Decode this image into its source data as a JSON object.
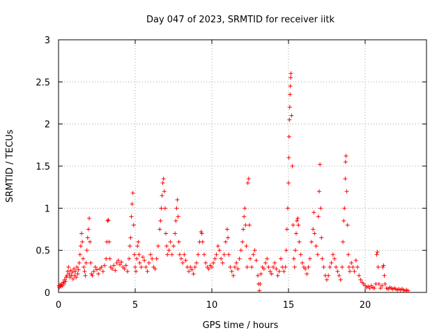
{
  "chart_data": {
    "type": "scatter",
    "title": "Day 047 of 2023, SRMTID for receiver iitk",
    "xlabel": "GPS time / hours",
    "ylabel": "SRMTID / TECUs",
    "xlim": [
      0,
      24
    ],
    "ylim": [
      0,
      3
    ],
    "grid": true,
    "marker": "+",
    "color": "#ff0000",
    "xticks": [
      0,
      5,
      10,
      15,
      20
    ],
    "xtick_labels": [
      "0",
      "5",
      "10",
      "15",
      "20"
    ],
    "yticks": [
      0,
      0.5,
      1,
      1.5,
      2,
      2.5,
      3
    ],
    "ytick_labels": [
      "0",
      "0.5",
      "1",
      "1.5",
      "2",
      "2.5",
      "3"
    ],
    "series": [
      {
        "name": "SRMTID",
        "points": [
          [
            0.02,
            0.08
          ],
          [
            0.05,
            0.06
          ],
          [
            0.1,
            0.09
          ],
          [
            0.15,
            0.07
          ],
          [
            0.2,
            0.1
          ],
          [
            0.25,
            0.08
          ],
          [
            0.3,
            0.12
          ],
          [
            0.35,
            0.1
          ],
          [
            0.4,
            0.15
          ],
          [
            0.45,
            0.13
          ],
          [
            0.5,
            0.18
          ],
          [
            0.55,
            0.2
          ],
          [
            0.6,
            0.25
          ],
          [
            0.65,
            0.3
          ],
          [
            0.7,
            0.22
          ],
          [
            0.75,
            0.18
          ],
          [
            0.8,
            0.26
          ],
          [
            0.85,
            0.2
          ],
          [
            0.9,
            0.24
          ],
          [
            0.95,
            0.16
          ],
          [
            1.0,
            0.28
          ],
          [
            1.05,
            0.2
          ],
          [
            1.1,
            0.25
          ],
          [
            1.15,
            0.18
          ],
          [
            1.2,
            0.3
          ],
          [
            1.25,
            0.22
          ],
          [
            1.3,
            0.27
          ],
          [
            1.35,
            0.35
          ],
          [
            1.4,
            0.45
          ],
          [
            1.45,
            0.55
          ],
          [
            1.5,
            0.7
          ],
          [
            1.55,
            0.6
          ],
          [
            1.6,
            0.4
          ],
          [
            1.65,
            0.3
          ],
          [
            1.7,
            0.25
          ],
          [
            1.75,
            0.2
          ],
          [
            1.8,
            0.35
          ],
          [
            1.85,
            0.5
          ],
          [
            1.9,
            0.65
          ],
          [
            1.95,
            0.75
          ],
          [
            2.0,
            0.88
          ],
          [
            2.05,
            0.6
          ],
          [
            2.1,
            0.35
          ],
          [
            2.15,
            0.22
          ],
          [
            2.2,
            0.2
          ],
          [
            2.3,
            0.25
          ],
          [
            2.4,
            0.3
          ],
          [
            2.5,
            0.27
          ],
          [
            2.6,
            0.22
          ],
          [
            2.7,
            0.28
          ],
          [
            2.8,
            0.3
          ],
          [
            2.9,
            0.25
          ],
          [
            3.0,
            0.32
          ],
          [
            3.1,
            0.4
          ],
          [
            3.15,
            0.6
          ],
          [
            3.2,
            0.85
          ],
          [
            3.25,
            0.86
          ],
          [
            3.3,
            0.6
          ],
          [
            3.35,
            0.4
          ],
          [
            3.4,
            0.3
          ],
          [
            3.5,
            0.28
          ],
          [
            3.6,
            0.32
          ],
          [
            3.7,
            0.26
          ],
          [
            3.8,
            0.35
          ],
          [
            3.9,
            0.38
          ],
          [
            4.0,
            0.33
          ],
          [
            4.1,
            0.36
          ],
          [
            4.2,
            0.3
          ],
          [
            4.3,
            0.28
          ],
          [
            4.4,
            0.32
          ],
          [
            4.5,
            0.25
          ],
          [
            4.6,
            0.4
          ],
          [
            4.65,
            0.55
          ],
          [
            4.7,
            0.65
          ],
          [
            4.75,
            0.9
          ],
          [
            4.8,
            1.05
          ],
          [
            4.85,
            1.18
          ],
          [
            4.9,
            0.8
          ],
          [
            4.95,
            0.45
          ],
          [
            5.0,
            0.3
          ],
          [
            5.05,
            0.25
          ],
          [
            5.1,
            0.4
          ],
          [
            5.15,
            0.55
          ],
          [
            5.2,
            0.6
          ],
          [
            5.25,
            0.45
          ],
          [
            5.3,
            0.35
          ],
          [
            5.4,
            0.3
          ],
          [
            5.5,
            0.42
          ],
          [
            5.6,
            0.38
          ],
          [
            5.7,
            0.3
          ],
          [
            5.8,
            0.25
          ],
          [
            5.9,
            0.35
          ],
          [
            6.0,
            0.45
          ],
          [
            6.1,
            0.4
          ],
          [
            6.2,
            0.3
          ],
          [
            6.3,
            0.28
          ],
          [
            6.4,
            0.4
          ],
          [
            6.5,
            0.55
          ],
          [
            6.6,
            0.75
          ],
          [
            6.65,
            0.85
          ],
          [
            6.7,
            1.0
          ],
          [
            6.75,
            1.15
          ],
          [
            6.8,
            1.3
          ],
          [
            6.85,
            1.35
          ],
          [
            6.9,
            1.2
          ],
          [
            6.95,
            1.0
          ],
          [
            7.0,
            0.7
          ],
          [
            7.05,
            0.55
          ],
          [
            7.1,
            0.45
          ],
          [
            7.2,
            0.5
          ],
          [
            7.3,
            0.6
          ],
          [
            7.4,
            0.45
          ],
          [
            7.5,
            0.55
          ],
          [
            7.6,
            0.7
          ],
          [
            7.65,
            0.85
          ],
          [
            7.7,
            1.0
          ],
          [
            7.75,
            1.1
          ],
          [
            7.8,
            0.9
          ],
          [
            7.85,
            0.6
          ],
          [
            7.9,
            0.45
          ],
          [
            8.0,
            0.4
          ],
          [
            8.1,
            0.35
          ],
          [
            8.2,
            0.45
          ],
          [
            8.3,
            0.38
          ],
          [
            8.4,
            0.3
          ],
          [
            8.5,
            0.25
          ],
          [
            8.6,
            0.3
          ],
          [
            8.7,
            0.27
          ],
          [
            8.8,
            0.22
          ],
          [
            8.9,
            0.3
          ],
          [
            9.0,
            0.35
          ],
          [
            9.1,
            0.45
          ],
          [
            9.2,
            0.6
          ],
          [
            9.3,
            0.72
          ],
          [
            9.35,
            0.7
          ],
          [
            9.4,
            0.6
          ],
          [
            9.5,
            0.45
          ],
          [
            9.6,
            0.35
          ],
          [
            9.7,
            0.3
          ],
          [
            9.8,
            0.28
          ],
          [
            9.9,
            0.32
          ],
          [
            10.0,
            0.3
          ],
          [
            10.1,
            0.35
          ],
          [
            10.2,
            0.4
          ],
          [
            10.3,
            0.45
          ],
          [
            10.4,
            0.55
          ],
          [
            10.5,
            0.5
          ],
          [
            10.6,
            0.4
          ],
          [
            10.7,
            0.35
          ],
          [
            10.8,
            0.45
          ],
          [
            10.9,
            0.6
          ],
          [
            11.0,
            0.75
          ],
          [
            11.05,
            0.65
          ],
          [
            11.1,
            0.45
          ],
          [
            11.2,
            0.3
          ],
          [
            11.3,
            0.25
          ],
          [
            11.4,
            0.2
          ],
          [
            11.5,
            0.3
          ],
          [
            11.6,
            0.35
          ],
          [
            11.7,
            0.28
          ],
          [
            11.8,
            0.4
          ],
          [
            11.9,
            0.5
          ],
          [
            12.0,
            0.6
          ],
          [
            12.05,
            0.75
          ],
          [
            12.1,
            0.9
          ],
          [
            12.15,
            1.0
          ],
          [
            12.2,
            0.8
          ],
          [
            12.25,
            0.55
          ],
          [
            12.3,
            0.3
          ],
          [
            12.35,
            1.3
          ],
          [
            12.4,
            1.35
          ],
          [
            12.45,
            0.8
          ],
          [
            12.5,
            0.4
          ],
          [
            12.6,
            0.3
          ],
          [
            12.7,
            0.45
          ],
          [
            12.8,
            0.5
          ],
          [
            12.9,
            0.38
          ],
          [
            13.0,
            0.2
          ],
          [
            13.05,
            0.1
          ],
          [
            13.1,
            0.02
          ],
          [
            13.15,
            0.1
          ],
          [
            13.2,
            0.22
          ],
          [
            13.3,
            0.3
          ],
          [
            13.4,
            0.28
          ],
          [
            13.5,
            0.35
          ],
          [
            13.6,
            0.4
          ],
          [
            13.7,
            0.3
          ],
          [
            13.8,
            0.25
          ],
          [
            13.9,
            0.22
          ],
          [
            14.0,
            0.3
          ],
          [
            14.1,
            0.35
          ],
          [
            14.2,
            0.28
          ],
          [
            14.3,
            0.2
          ],
          [
            14.4,
            0.25
          ],
          [
            14.5,
            0.4
          ],
          [
            14.6,
            0.3
          ],
          [
            14.7,
            0.25
          ],
          [
            14.8,
            0.3
          ],
          [
            14.85,
            0.5
          ],
          [
            14.9,
            0.75
          ],
          [
            14.95,
            1.0
          ],
          [
            15.0,
            1.3
          ],
          [
            15.02,
            1.6
          ],
          [
            15.04,
            1.85
          ],
          [
            15.06,
            2.05
          ],
          [
            15.08,
            2.2
          ],
          [
            15.1,
            2.35
          ],
          [
            15.12,
            2.45
          ],
          [
            15.14,
            2.55
          ],
          [
            15.16,
            2.6
          ],
          [
            15.2,
            2.1
          ],
          [
            15.25,
            1.5
          ],
          [
            15.3,
            0.8
          ],
          [
            15.35,
            0.4
          ],
          [
            15.4,
            0.3
          ],
          [
            15.45,
            0.5
          ],
          [
            15.5,
            0.7
          ],
          [
            15.55,
            0.85
          ],
          [
            15.6,
            0.88
          ],
          [
            15.65,
            0.8
          ],
          [
            15.7,
            0.6
          ],
          [
            15.8,
            0.45
          ],
          [
            15.9,
            0.35
          ],
          [
            16.0,
            0.3
          ],
          [
            16.1,
            0.28
          ],
          [
            16.2,
            0.22
          ],
          [
            16.3,
            0.3
          ],
          [
            16.4,
            0.4
          ],
          [
            16.5,
            0.6
          ],
          [
            16.6,
            0.75
          ],
          [
            16.65,
            0.95
          ],
          [
            16.7,
            0.7
          ],
          [
            16.8,
            0.55
          ],
          [
            16.9,
            0.45
          ],
          [
            16.95,
            0.9
          ],
          [
            17.0,
            1.2
          ],
          [
            17.05,
            1.52
          ],
          [
            17.1,
            1.0
          ],
          [
            17.15,
            0.65
          ],
          [
            17.2,
            0.4
          ],
          [
            17.3,
            0.3
          ],
          [
            17.4,
            0.2
          ],
          [
            17.5,
            0.15
          ],
          [
            17.6,
            0.2
          ],
          [
            17.7,
            0.3
          ],
          [
            17.8,
            0.35
          ],
          [
            17.9,
            0.45
          ],
          [
            18.0,
            0.4
          ],
          [
            18.1,
            0.3
          ],
          [
            18.2,
            0.25
          ],
          [
            18.3,
            0.2
          ],
          [
            18.4,
            0.15
          ],
          [
            18.5,
            0.3
          ],
          [
            18.55,
            0.6
          ],
          [
            18.6,
            0.85
          ],
          [
            18.65,
            1.0
          ],
          [
            18.7,
            1.35
          ],
          [
            18.72,
            1.55
          ],
          [
            18.75,
            1.62
          ],
          [
            18.8,
            1.2
          ],
          [
            18.85,
            0.8
          ],
          [
            18.9,
            0.45
          ],
          [
            18.95,
            0.3
          ],
          [
            19.0,
            0.25
          ],
          [
            19.1,
            0.35
          ],
          [
            19.2,
            0.3
          ],
          [
            19.3,
            0.25
          ],
          [
            19.4,
            0.38
          ],
          [
            19.5,
            0.3
          ],
          [
            19.6,
            0.2
          ],
          [
            19.7,
            0.15
          ],
          [
            19.8,
            0.12
          ],
          [
            19.9,
            0.1
          ],
          [
            20.0,
            0.08
          ],
          [
            20.1,
            0.06
          ],
          [
            20.2,
            0.07
          ],
          [
            20.3,
            0.05
          ],
          [
            20.4,
            0.08
          ],
          [
            20.5,
            0.06
          ],
          [
            20.6,
            0.05
          ],
          [
            20.7,
            0.1
          ],
          [
            20.75,
            0.45
          ],
          [
            20.8,
            0.48
          ],
          [
            20.85,
            0.3
          ],
          [
            20.9,
            0.1
          ],
          [
            21.0,
            0.05
          ],
          [
            21.1,
            0.08
          ],
          [
            21.15,
            0.3
          ],
          [
            21.2,
            0.32
          ],
          [
            21.25,
            0.2
          ],
          [
            21.3,
            0.1
          ],
          [
            21.4,
            0.05
          ],
          [
            21.5,
            0.04
          ],
          [
            21.6,
            0.06
          ],
          [
            21.7,
            0.05
          ],
          [
            21.8,
            0.04
          ],
          [
            21.9,
            0.05
          ],
          [
            22.0,
            0.04
          ],
          [
            22.1,
            0.03
          ],
          [
            22.2,
            0.04
          ],
          [
            22.3,
            0.03
          ],
          [
            22.4,
            0.04
          ],
          [
            22.5,
            0.03
          ],
          [
            22.6,
            0.02
          ],
          [
            22.7,
            0.03
          ],
          [
            22.8,
            0.02
          ]
        ]
      }
    ]
  }
}
